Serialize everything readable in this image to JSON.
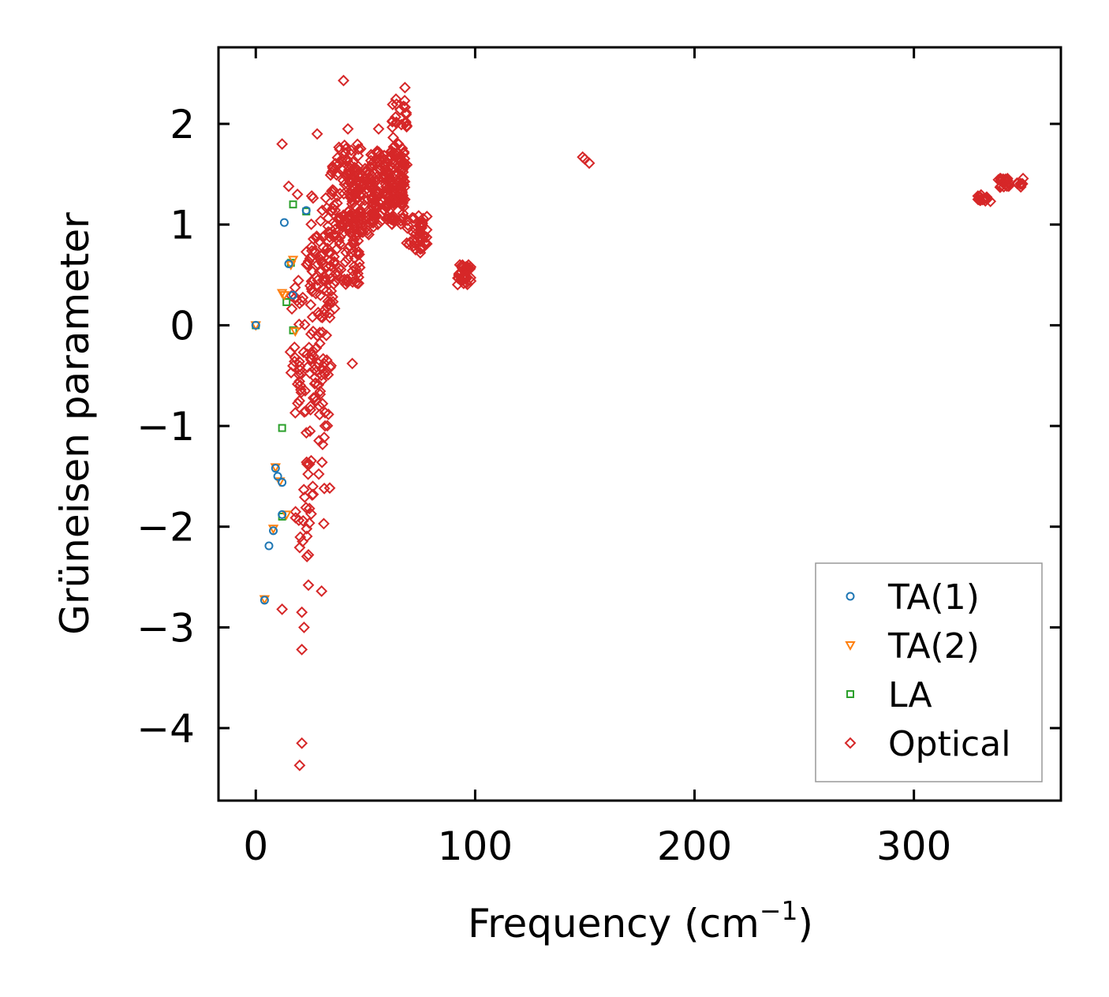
{
  "chart_data": {
    "type": "scatter",
    "title": "",
    "xlabel": "Frequency (cm",
    "xlabel_sup": "−1",
    "xlabel_close": ")",
    "ylabel": "Grüneisen parameter",
    "xlim": [
      -17,
      367
    ],
    "ylim": [
      -4.72,
      2.76
    ],
    "xticks": [
      0,
      100,
      200,
      300
    ],
    "xtick_labels": [
      "0",
      "100",
      "200",
      "300"
    ],
    "yticks": [
      2,
      1,
      0,
      -1,
      -2,
      -3,
      -4
    ],
    "ytick_labels": [
      "2",
      "1",
      "0",
      "−1",
      "−2",
      "−3",
      "−4"
    ],
    "grid": false,
    "legend_position": "bottom-right",
    "series": [
      {
        "name": "TA(1)",
        "marker": "circle",
        "color": "#1f77b4",
        "points": [
          [
            0,
            0
          ],
          [
            4,
            -2.73
          ],
          [
            6,
            -2.19
          ],
          [
            8,
            -2.04
          ],
          [
            9,
            -1.42
          ],
          [
            10,
            -1.5
          ],
          [
            12,
            -1.56
          ],
          [
            12,
            -1.88
          ],
          [
            13,
            1.02
          ],
          [
            15,
            0.61
          ],
          [
            17,
            0.3
          ],
          [
            23,
            1.14
          ]
        ]
      },
      {
        "name": "TA(2)",
        "marker": "triangle-down",
        "color": "#ff7f0e",
        "points": [
          [
            0,
            0
          ],
          [
            4,
            -2.72
          ],
          [
            8,
            -2.02
          ],
          [
            9,
            -1.41
          ],
          [
            11,
            -1.55
          ],
          [
            12,
            0.32
          ],
          [
            13,
            0.3
          ],
          [
            14,
            -1.88
          ],
          [
            16,
            0.6
          ],
          [
            17,
            0.65
          ],
          [
            18,
            -0.06
          ]
        ]
      },
      {
        "name": "LA",
        "marker": "square",
        "color": "#2ca02c",
        "points": [
          [
            0,
            0
          ],
          [
            12,
            -1.02
          ],
          [
            12,
            -1.9
          ],
          [
            14,
            0.23
          ],
          [
            16,
            0.62
          ],
          [
            17,
            1.2
          ],
          [
            17,
            -0.05
          ],
          [
            23,
            1.13
          ]
        ]
      },
      {
        "name": "Optical",
        "marker": "diamond",
        "color": "#d62728",
        "points": [
          [
            12,
            1.8
          ],
          [
            12,
            -2.82
          ],
          [
            15,
            1.38
          ],
          [
            19,
            1.3
          ],
          [
            20,
            -4.37
          ],
          [
            21,
            -4.15
          ],
          [
            21,
            -3.22
          ],
          [
            21,
            -2.85
          ],
          [
            22,
            -3.0
          ],
          [
            24,
            -2.58
          ],
          [
            24,
            -2.28
          ],
          [
            26,
            -1.6
          ],
          [
            28,
            1.9
          ],
          [
            30,
            -2.64
          ],
          [
            31,
            -1.97
          ],
          [
            40,
            2.43
          ],
          [
            42,
            1.95
          ],
          [
            44,
            -0.38
          ],
          [
            56,
            1.95
          ],
          [
            68,
            2.36
          ],
          [
            149,
            1.67
          ],
          [
            150,
            1.65
          ],
          [
            152,
            1.61
          ],
          [
            93,
            0.6
          ],
          [
            94,
            0.48
          ],
          [
            96,
            0.42
          ],
          [
            98,
            0.44
          ],
          [
            78,
            1.08
          ],
          [
            75,
            0.72
          ]
        ]
      }
    ],
    "optical_clusters": [
      {
        "x": [
          15,
          22
        ],
        "y": [
          -0.9,
          0.45
        ],
        "n": 30
      },
      {
        "x": [
          18,
          26
        ],
        "y": [
          -2.3,
          -1.6
        ],
        "n": 16
      },
      {
        "x": [
          22,
          34
        ],
        "y": [
          -1.7,
          0.9
        ],
        "n": 90
      },
      {
        "x": [
          25,
          36
        ],
        "y": [
          -0.6,
          1.3
        ],
        "n": 60
      },
      {
        "x": [
          33,
          48
        ],
        "y": [
          0.4,
          1.8
        ],
        "n": 160
      },
      {
        "x": [
          42,
          55
        ],
        "y": [
          0.9,
          1.6
        ],
        "n": 90
      },
      {
        "x": [
          52,
          68
        ],
        "y": [
          1.0,
          1.75
        ],
        "n": 160
      },
      {
        "x": [
          62,
          69
        ],
        "y": [
          1.2,
          2.25
        ],
        "n": 60
      },
      {
        "x": [
          68,
          78
        ],
        "y": [
          0.75,
          1.1
        ],
        "n": 40
      },
      {
        "x": [
          92,
          98
        ],
        "y": [
          0.4,
          0.62
        ],
        "n": 30
      },
      {
        "x": [
          328,
          335
        ],
        "y": [
          1.23,
          1.3
        ],
        "n": 16
      },
      {
        "x": [
          338,
          350
        ],
        "y": [
          1.37,
          1.47
        ],
        "n": 28
      }
    ]
  }
}
